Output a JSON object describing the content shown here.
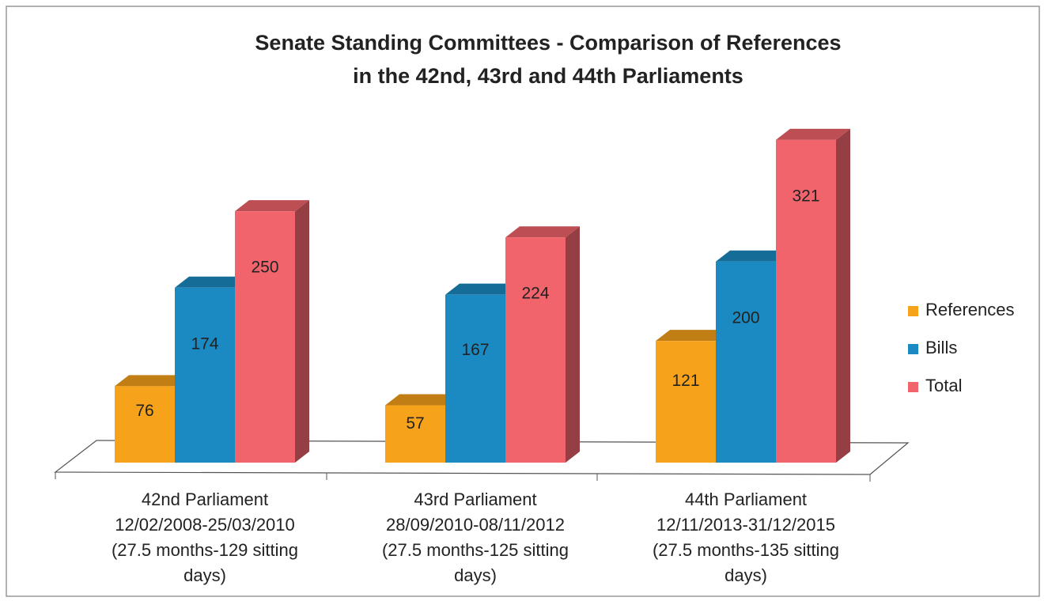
{
  "chart_data": {
    "type": "bar3d",
    "title": [
      "Senate Standing Committees - Comparison of References",
      "in the 42nd, 43rd and 44th Parliaments"
    ],
    "categories": [
      [
        "42nd Parliament",
        "12/02/2008-25/03/2010",
        "(27.5 months-129 sitting",
        "days)"
      ],
      [
        "43rd Parliament",
        "28/09/2010-08/11/2012",
        "(27.5 months-125 sitting",
        "days)"
      ],
      [
        "44th Parliament",
        "12/11/2013-31/12/2015",
        "(27.5 months-135 sitting",
        "days)"
      ]
    ],
    "series": [
      {
        "name": "References",
        "color": "#f7a21b",
        "values": [
          76,
          57,
          121
        ]
      },
      {
        "name": "Bills",
        "color": "#1b8ac2",
        "values": [
          174,
          167,
          200
        ]
      },
      {
        "name": "Total",
        "color": "#f1646c",
        "values": [
          250,
          224,
          321
        ]
      }
    ],
    "ylim": [
      0,
      350
    ],
    "legend": "right"
  }
}
